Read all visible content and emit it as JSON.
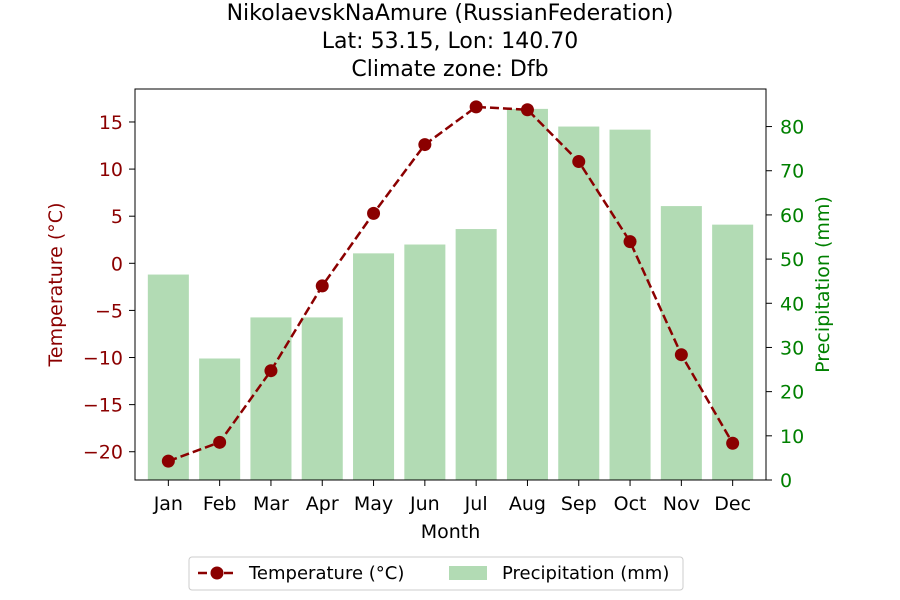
{
  "chart_data": {
    "type": "bar+line",
    "title_lines": [
      "NikolaevskNaAmure (RussianFederation)",
      "Lat: 53.15, Lon: 140.70",
      "Climate zone: Dfb"
    ],
    "xlabel": "Month",
    "categories": [
      "Jan",
      "Feb",
      "Mar",
      "Apr",
      "May",
      "Jun",
      "Jul",
      "Aug",
      "Sep",
      "Oct",
      "Nov",
      "Dec"
    ],
    "series": [
      {
        "name": "Temperature (°C)",
        "kind": "line",
        "axis": "left",
        "color": "#8b0000",
        "values": [
          -21.0,
          -19.0,
          -11.4,
          -2.4,
          5.3,
          12.6,
          16.6,
          16.3,
          10.8,
          2.3,
          -9.7,
          -19.1
        ]
      },
      {
        "name": "Precipitation (mm)",
        "kind": "bar",
        "axis": "right",
        "color": "#b2dbb4",
        "values": [
          46.5,
          27.5,
          36.8,
          36.8,
          51.3,
          53.3,
          56.8,
          84.0,
          80.0,
          79.3,
          62.0,
          57.8
        ]
      }
    ],
    "y_left": {
      "label": "Temperature (°C)",
      "color": "#8b0000",
      "range": [
        -23,
        18.5
      ],
      "ticks": [
        -20,
        -15,
        -10,
        -5,
        0,
        5,
        10,
        15
      ],
      "tick_labels": [
        "−20",
        "−15",
        "−10",
        "−5",
        "0",
        "5",
        "10",
        "15"
      ]
    },
    "y_right": {
      "label": "Precipitation (mm)",
      "color": "#008000",
      "range": [
        0,
        88.5
      ],
      "ticks": [
        0,
        10,
        20,
        30,
        40,
        50,
        60,
        70,
        80
      ],
      "tick_labels": [
        "0",
        "10",
        "20",
        "30",
        "40",
        "50",
        "60",
        "70",
        "80"
      ]
    },
    "legend": {
      "placement": "bottom-center",
      "entries": [
        "Temperature (°C)",
        "Precipitation (mm)"
      ]
    },
    "grid": false
  }
}
